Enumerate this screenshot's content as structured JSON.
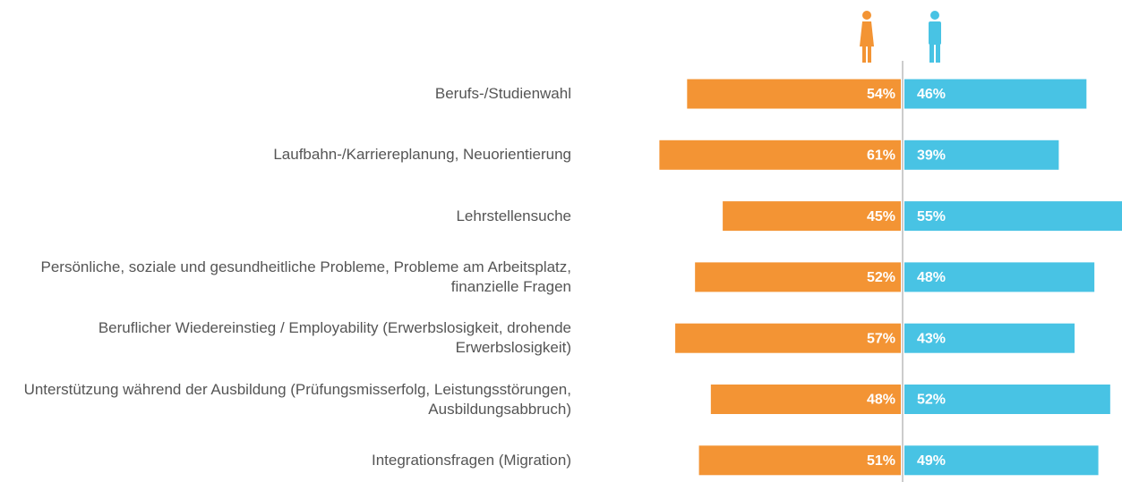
{
  "chart_data": {
    "type": "bar",
    "categories": [
      "Berufs-/Studienwahl",
      "Laufbahn-/Karriereplanung, Neuorientierung",
      "Lehrstellensuche",
      "Persönliche, soziale und gesundheitliche Probleme, Probleme am Arbeitsplatz, finanzielle Fragen",
      "Beruflicher Wiedereinstieg / Employability (Erwerbslosigkeit, drohende Erwerbslosigkeit)",
      "Unterstützung während der Ausbildung (Prüfungsmisserfolg, Leistungsstörungen, Ausbildungsabbruch)",
      "Integrationsfragen (Migration)"
    ],
    "series": [
      {
        "color": "#f39434",
        "values": [
          54,
          61,
          45,
          52,
          57,
          48,
          51
        ],
        "value_labels": [
          "54%",
          "61%",
          "45%",
          "52%",
          "57%",
          "48%",
          "51%"
        ]
      },
      {
        "color": "#48c3e4",
        "values": [
          46,
          39,
          55,
          48,
          43,
          52,
          49
        ],
        "value_labels": [
          "46%",
          "39%",
          "55%",
          "48%",
          "43%",
          "52%",
          "49%"
        ]
      }
    ]
  }
}
